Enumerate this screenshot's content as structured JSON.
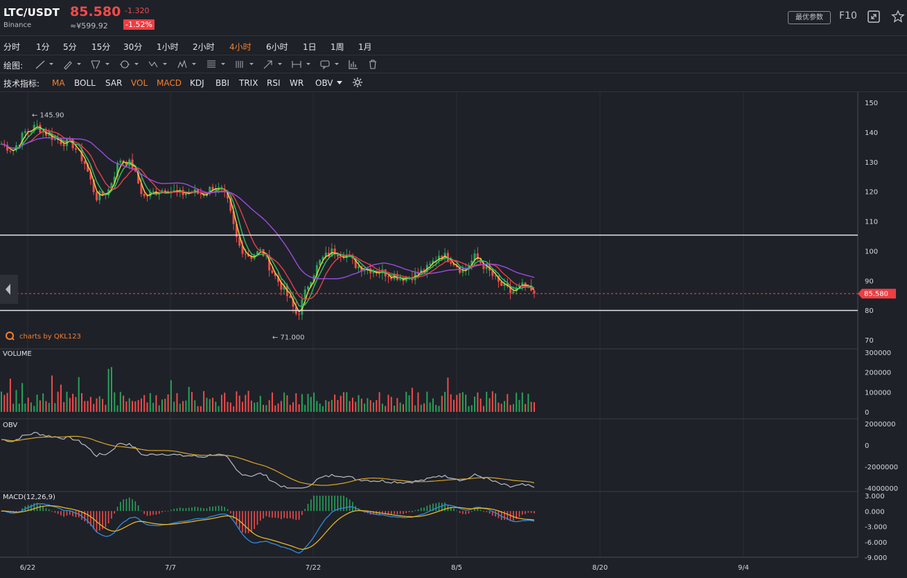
{
  "header": {
    "pair": "LTC/USDT",
    "exchange": "Binance",
    "price": "85.580",
    "cny_price": "≈¥599.92",
    "change": "-1.320",
    "change_pct": "-1.52%",
    "best_params_label": "最优参数",
    "f10_label": "F10",
    "colors": {
      "down": "#f14b4b",
      "up": "#26a35a",
      "accent": "#f2802e"
    }
  },
  "periods": {
    "items": [
      "分时",
      "1分",
      "5分",
      "15分",
      "30分",
      "1小时",
      "2小时",
      "4小时",
      "6小时",
      "1日",
      "1周",
      "1月"
    ],
    "active": "4小时"
  },
  "drawing": {
    "label": "绘图:",
    "tools": [
      "line-tool-icon",
      "pen-tool-icon",
      "channel-tool-icon",
      "circle-tool-icon",
      "wave-tool-icon",
      "pattern-tool-icon",
      "fib-tool-icon",
      "gann-tool-icon",
      "arrow-tool-icon",
      "measure-tool-icon",
      "comment-tool-icon",
      "bars-tool-icon",
      "trash-icon"
    ]
  },
  "indicators": {
    "label": "技术指标:",
    "items": [
      "MA",
      "BOLL",
      "SAR",
      "VOL",
      "MACD",
      "KDJ",
      "BBI",
      "TRIX",
      "RSI",
      "WR",
      "OBV"
    ],
    "active": [
      "MA",
      "VOL",
      "MACD"
    ]
  },
  "chart_data": [
    {
      "type": "candlestick",
      "pane": "price",
      "y_ticks": [
        "150",
        "140",
        "130",
        "120",
        "110",
        "100",
        "90",
        "80",
        "70"
      ],
      "ylim": [
        70,
        150
      ],
      "x_ticks": [
        "6/22",
        "7/7",
        "7/22",
        "8/5",
        "8/20",
        "9/4"
      ],
      "high_label": "145.90",
      "low_label": "71.000",
      "current_price_label": "85.580",
      "horizontal_levels": [
        105.3,
        79.9
      ],
      "close_approx": [
        136,
        134,
        140,
        142,
        139,
        137,
        136,
        130,
        118,
        120,
        131,
        129,
        118,
        120,
        121,
        119,
        120,
        119,
        122,
        118,
        102,
        98,
        100,
        92,
        86,
        78,
        90,
        97,
        100,
        99,
        95,
        94,
        93,
        92,
        91,
        92,
        94,
        99,
        97,
        93,
        98,
        94,
        89,
        86,
        88,
        85.58
      ],
      "ma_lines": [
        "yellow",
        "green",
        "red",
        "purple"
      ],
      "watermark": "charts by QKL123"
    },
    {
      "type": "bar",
      "pane": "volume",
      "title": "VOLUME",
      "y_ticks": [
        "300000",
        "200000",
        "100000",
        "0"
      ],
      "ylim": [
        0,
        300000
      ]
    },
    {
      "type": "line",
      "pane": "obv",
      "title": "OBV",
      "y_ticks": [
        "2000000",
        "0",
        "-2000000",
        "-4000000"
      ],
      "ylim": [
        -4000000,
        2000000
      ]
    },
    {
      "type": "line",
      "pane": "macd",
      "title": "MACD(12,26,9)",
      "y_ticks": [
        "3.000",
        "0.000",
        "-3.000",
        "-6.000",
        "-9.000"
      ],
      "ylim": [
        -9,
        3
      ]
    }
  ]
}
